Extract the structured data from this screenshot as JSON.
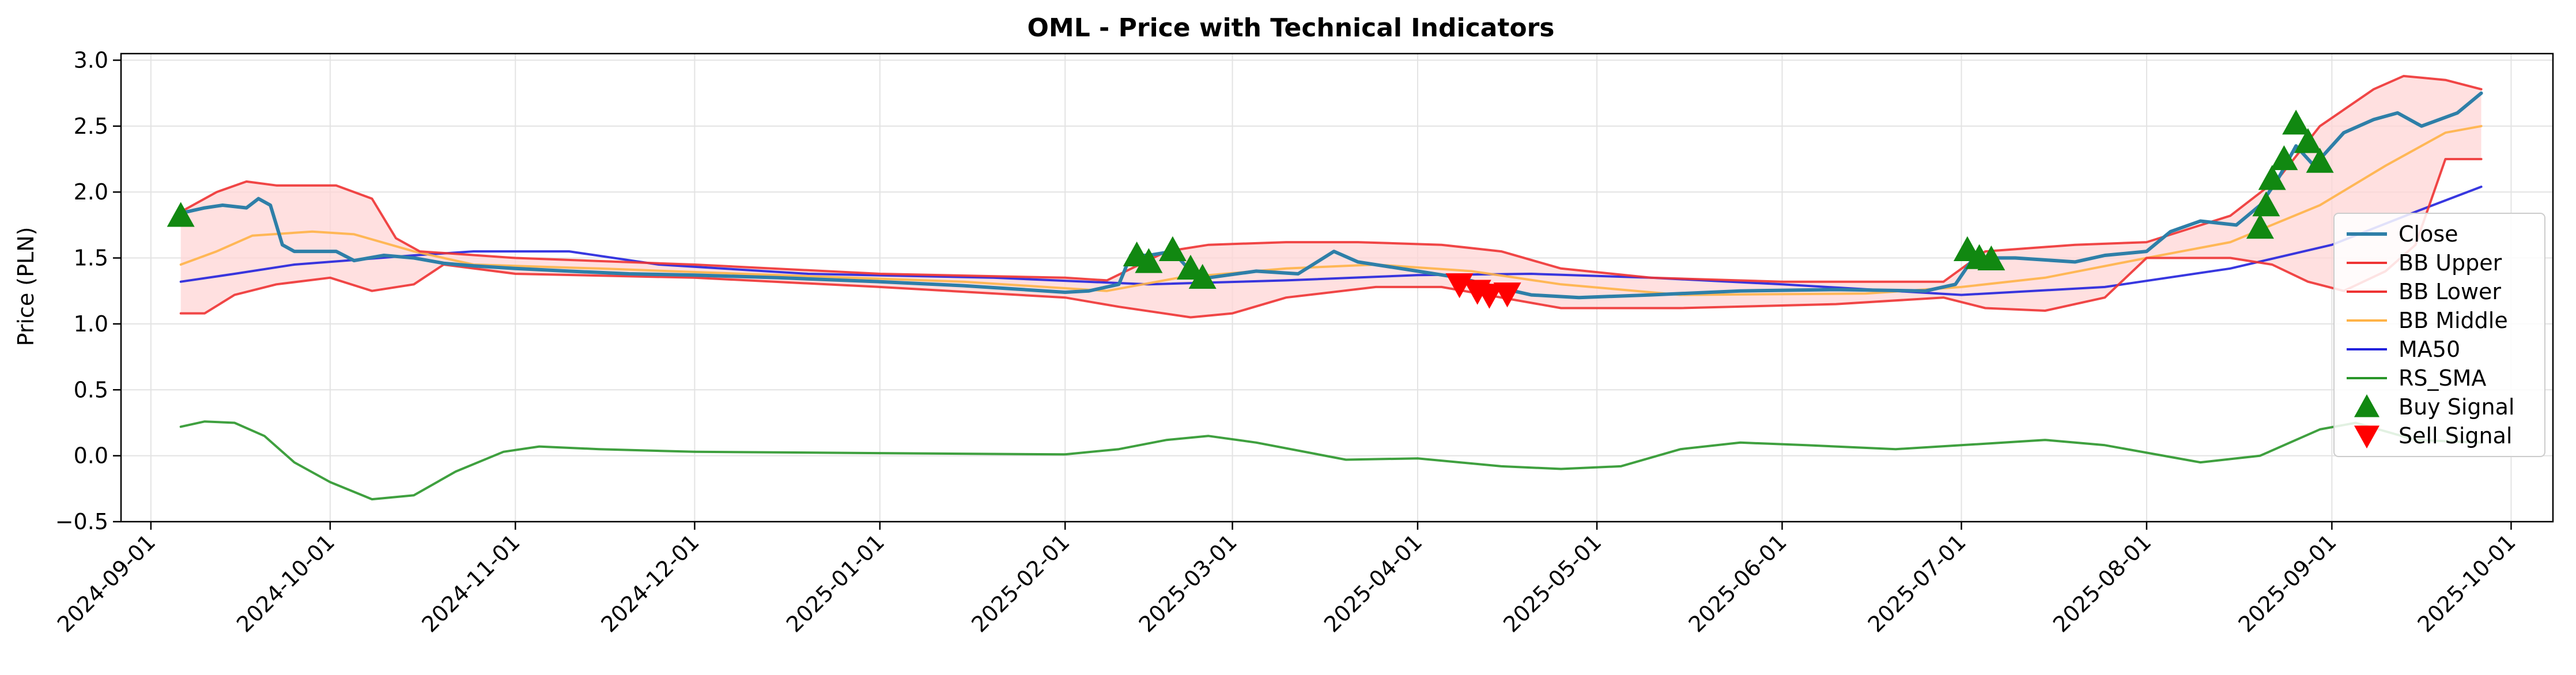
{
  "chart_data": {
    "type": "line",
    "title": "OML - Price with Technical Indicators",
    "xlabel": "",
    "ylabel": "Price (PLN)",
    "ylim": [
      -0.5,
      3.05
    ],
    "xlim": [
      "2024-08-27",
      "2025-10-08"
    ],
    "grid": true,
    "legend_position": "right",
    "y_ticks": [
      "−0.5",
      "0.0",
      "0.5",
      "1.0",
      "1.5",
      "2.0",
      "2.5",
      "3.0"
    ],
    "x_ticks": [
      "2024-09-01",
      "2024-10-01",
      "2024-11-01",
      "2024-12-01",
      "2025-01-01",
      "2025-02-01",
      "2025-03-01",
      "2025-04-01",
      "2025-05-01",
      "2025-06-01",
      "2025-07-01",
      "2025-08-01",
      "2025-09-01",
      "2025-10-01"
    ],
    "colors": {
      "close": "#2e7fa8",
      "bb_upper": "#ee3333",
      "bb_lower": "#ee3333",
      "bb_middle": "#ffb347",
      "ma50": "#2222dd",
      "rs_sma": "#2a962a",
      "band_fill": "#ffd6d6",
      "buy": "#118811",
      "sell": "#ff0000"
    },
    "series": [
      {
        "name": "Close",
        "points": [
          [
            "2024-09-06",
            1.84
          ],
          [
            "2024-09-10",
            1.88
          ],
          [
            "2024-09-13",
            1.9
          ],
          [
            "2024-09-17",
            1.88
          ],
          [
            "2024-09-19",
            1.95
          ],
          [
            "2024-09-21",
            1.9
          ],
          [
            "2024-09-23",
            1.6
          ],
          [
            "2024-09-25",
            1.55
          ],
          [
            "2024-09-28",
            1.55
          ],
          [
            "2024-10-02",
            1.55
          ],
          [
            "2024-10-05",
            1.48
          ],
          [
            "2024-10-10",
            1.52
          ],
          [
            "2024-10-15",
            1.5
          ],
          [
            "2024-10-20",
            1.46
          ],
          [
            "2024-10-25",
            1.44
          ],
          [
            "2024-11-01",
            1.42
          ],
          [
            "2024-11-10",
            1.4
          ],
          [
            "2024-11-20",
            1.38
          ],
          [
            "2024-12-01",
            1.37
          ],
          [
            "2024-12-15",
            1.35
          ],
          [
            "2025-01-01",
            1.32
          ],
          [
            "2025-01-15",
            1.29
          ],
          [
            "2025-02-01",
            1.24
          ],
          [
            "2025-02-05",
            1.25
          ],
          [
            "2025-02-10",
            1.3
          ],
          [
            "2025-02-12",
            1.52
          ],
          [
            "2025-02-15",
            1.52
          ],
          [
            "2025-02-19",
            1.55
          ],
          [
            "2025-02-22",
            1.4
          ],
          [
            "2025-02-25",
            1.35
          ],
          [
            "2025-03-05",
            1.4
          ],
          [
            "2025-03-12",
            1.38
          ],
          [
            "2025-03-18",
            1.55
          ],
          [
            "2025-03-22",
            1.47
          ],
          [
            "2025-04-01",
            1.4
          ],
          [
            "2025-04-08",
            1.35
          ],
          [
            "2025-04-15",
            1.27
          ],
          [
            "2025-04-20",
            1.22
          ],
          [
            "2025-04-28",
            1.2
          ],
          [
            "2025-05-10",
            1.22
          ],
          [
            "2025-05-25",
            1.25
          ],
          [
            "2025-06-10",
            1.26
          ],
          [
            "2025-06-25",
            1.25
          ],
          [
            "2025-06-30",
            1.3
          ],
          [
            "2025-07-03",
            1.5
          ],
          [
            "2025-07-10",
            1.5
          ],
          [
            "2025-07-20",
            1.47
          ],
          [
            "2025-07-25",
            1.52
          ],
          [
            "2025-08-01",
            1.55
          ],
          [
            "2025-08-05",
            1.7
          ],
          [
            "2025-08-10",
            1.78
          ],
          [
            "2025-08-16",
            1.75
          ],
          [
            "2025-08-20",
            1.9
          ],
          [
            "2025-08-23",
            2.1
          ],
          [
            "2025-08-26",
            2.35
          ],
          [
            "2025-08-29",
            2.2
          ],
          [
            "2025-09-03",
            2.45
          ],
          [
            "2025-09-08",
            2.55
          ],
          [
            "2025-09-12",
            2.6
          ],
          [
            "2025-09-16",
            2.5
          ],
          [
            "2025-09-22",
            2.6
          ],
          [
            "2025-09-26",
            2.75
          ]
        ]
      },
      {
        "name": "BB Upper",
        "points": [
          [
            "2024-09-06",
            1.85
          ],
          [
            "2024-09-12",
            2.0
          ],
          [
            "2024-09-17",
            2.08
          ],
          [
            "2024-09-22",
            2.05
          ],
          [
            "2024-10-02",
            2.05
          ],
          [
            "2024-10-08",
            1.95
          ],
          [
            "2024-10-12",
            1.65
          ],
          [
            "2024-10-16",
            1.55
          ],
          [
            "2024-11-01",
            1.5
          ],
          [
            "2024-12-01",
            1.45
          ],
          [
            "2025-01-01",
            1.38
          ],
          [
            "2025-02-01",
            1.35
          ],
          [
            "2025-02-08",
            1.33
          ],
          [
            "2025-02-18",
            1.55
          ],
          [
            "2025-02-25",
            1.6
          ],
          [
            "2025-03-10",
            1.62
          ],
          [
            "2025-03-22",
            1.62
          ],
          [
            "2025-04-05",
            1.6
          ],
          [
            "2025-04-15",
            1.55
          ],
          [
            "2025-04-25",
            1.42
          ],
          [
            "2025-05-10",
            1.35
          ],
          [
            "2025-06-01",
            1.32
          ],
          [
            "2025-06-28",
            1.32
          ],
          [
            "2025-07-05",
            1.55
          ],
          [
            "2025-07-20",
            1.6
          ],
          [
            "2025-08-01",
            1.62
          ],
          [
            "2025-08-15",
            1.82
          ],
          [
            "2025-08-23",
            2.1
          ],
          [
            "2025-08-30",
            2.5
          ],
          [
            "2025-09-08",
            2.78
          ],
          [
            "2025-09-13",
            2.88
          ],
          [
            "2025-09-20",
            2.85
          ],
          [
            "2025-09-26",
            2.78
          ]
        ]
      },
      {
        "name": "BB Lower",
        "points": [
          [
            "2024-09-06",
            1.08
          ],
          [
            "2024-09-10",
            1.08
          ],
          [
            "2024-09-15",
            1.22
          ],
          [
            "2024-09-22",
            1.3
          ],
          [
            "2024-10-01",
            1.35
          ],
          [
            "2024-10-08",
            1.25
          ],
          [
            "2024-10-15",
            1.3
          ],
          [
            "2024-10-20",
            1.45
          ],
          [
            "2024-11-01",
            1.38
          ],
          [
            "2024-12-01",
            1.35
          ],
          [
            "2025-01-01",
            1.28
          ],
          [
            "2025-02-01",
            1.2
          ],
          [
            "2025-02-10",
            1.13
          ],
          [
            "2025-02-22",
            1.05
          ],
          [
            "2025-03-01",
            1.08
          ],
          [
            "2025-03-10",
            1.2
          ],
          [
            "2025-03-25",
            1.28
          ],
          [
            "2025-04-05",
            1.28
          ],
          [
            "2025-04-15",
            1.2
          ],
          [
            "2025-04-25",
            1.12
          ],
          [
            "2025-05-15",
            1.12
          ],
          [
            "2025-06-10",
            1.15
          ],
          [
            "2025-06-28",
            1.2
          ],
          [
            "2025-07-05",
            1.12
          ],
          [
            "2025-07-15",
            1.1
          ],
          [
            "2025-07-25",
            1.2
          ],
          [
            "2025-08-01",
            1.5
          ],
          [
            "2025-08-15",
            1.5
          ],
          [
            "2025-08-22",
            1.45
          ],
          [
            "2025-08-28",
            1.32
          ],
          [
            "2025-09-03",
            1.25
          ],
          [
            "2025-09-10",
            1.4
          ],
          [
            "2025-09-15",
            1.6
          ],
          [
            "2025-09-20",
            2.25
          ],
          [
            "2025-09-26",
            2.25
          ]
        ]
      },
      {
        "name": "BB Middle",
        "points": [
          [
            "2024-09-06",
            1.45
          ],
          [
            "2024-09-12",
            1.55
          ],
          [
            "2024-09-18",
            1.67
          ],
          [
            "2024-09-28",
            1.7
          ],
          [
            "2024-10-05",
            1.68
          ],
          [
            "2024-10-15",
            1.55
          ],
          [
            "2024-10-25",
            1.45
          ],
          [
            "2024-11-15",
            1.42
          ],
          [
            "2024-12-15",
            1.37
          ],
          [
            "2025-01-15",
            1.32
          ],
          [
            "2025-02-08",
            1.25
          ],
          [
            "2025-02-20",
            1.35
          ],
          [
            "2025-03-10",
            1.42
          ],
          [
            "2025-03-25",
            1.45
          ],
          [
            "2025-04-10",
            1.4
          ],
          [
            "2025-04-25",
            1.3
          ],
          [
            "2025-05-15",
            1.22
          ],
          [
            "2025-06-15",
            1.23
          ],
          [
            "2025-07-01",
            1.28
          ],
          [
            "2025-07-15",
            1.35
          ],
          [
            "2025-08-01",
            1.5
          ],
          [
            "2025-08-15",
            1.62
          ],
          [
            "2025-08-30",
            1.9
          ],
          [
            "2025-09-10",
            2.2
          ],
          [
            "2025-09-20",
            2.45
          ],
          [
            "2025-09-26",
            2.5
          ]
        ]
      },
      {
        "name": "MA50",
        "points": [
          [
            "2024-09-06",
            1.32
          ],
          [
            "2024-09-15",
            1.38
          ],
          [
            "2024-09-25",
            1.45
          ],
          [
            "2024-10-15",
            1.52
          ],
          [
            "2024-10-25",
            1.55
          ],
          [
            "2024-11-10",
            1.55
          ],
          [
            "2024-11-25",
            1.45
          ],
          [
            "2024-12-20",
            1.38
          ],
          [
            "2025-01-20",
            1.35
          ],
          [
            "2025-02-15",
            1.3
          ],
          [
            "2025-03-10",
            1.33
          ],
          [
            "2025-04-01",
            1.37
          ],
          [
            "2025-04-20",
            1.38
          ],
          [
            "2025-05-10",
            1.35
          ],
          [
            "2025-06-01",
            1.3
          ],
          [
            "2025-07-01",
            1.22
          ],
          [
            "2025-07-25",
            1.28
          ],
          [
            "2025-08-15",
            1.42
          ],
          [
            "2025-09-01",
            1.6
          ],
          [
            "2025-09-15",
            1.85
          ],
          [
            "2025-09-26",
            2.04
          ]
        ]
      },
      {
        "name": "RS_SMA",
        "points": [
          [
            "2024-09-06",
            0.22
          ],
          [
            "2024-09-10",
            0.26
          ],
          [
            "2024-09-15",
            0.25
          ],
          [
            "2024-09-20",
            0.15
          ],
          [
            "2024-09-25",
            -0.05
          ],
          [
            "2024-10-01",
            -0.2
          ],
          [
            "2024-10-08",
            -0.33
          ],
          [
            "2024-10-15",
            -0.3
          ],
          [
            "2024-10-22",
            -0.12
          ],
          [
            "2024-10-30",
            0.03
          ],
          [
            "2024-11-05",
            0.07
          ],
          [
            "2024-11-15",
            0.05
          ],
          [
            "2024-12-01",
            0.03
          ],
          [
            "2025-01-01",
            0.02
          ],
          [
            "2025-02-01",
            0.01
          ],
          [
            "2025-02-10",
            0.05
          ],
          [
            "2025-02-18",
            0.12
          ],
          [
            "2025-02-25",
            0.15
          ],
          [
            "2025-03-05",
            0.1
          ],
          [
            "2025-03-20",
            -0.03
          ],
          [
            "2025-04-01",
            -0.02
          ],
          [
            "2025-04-15",
            -0.08
          ],
          [
            "2025-04-25",
            -0.1
          ],
          [
            "2025-05-05",
            -0.08
          ],
          [
            "2025-05-15",
            0.05
          ],
          [
            "2025-05-25",
            0.1
          ],
          [
            "2025-06-05",
            0.08
          ],
          [
            "2025-06-20",
            0.05
          ],
          [
            "2025-07-01",
            0.08
          ],
          [
            "2025-07-15",
            0.12
          ],
          [
            "2025-07-25",
            0.08
          ],
          [
            "2025-08-10",
            -0.05
          ],
          [
            "2025-08-20",
            0.0
          ],
          [
            "2025-08-30",
            0.2
          ],
          [
            "2025-09-05",
            0.25
          ],
          [
            "2025-09-15",
            0.12
          ],
          [
            "2025-09-26",
            0.1
          ]
        ]
      }
    ],
    "markers": [
      {
        "name": "Buy Signal",
        "points": [
          [
            "2024-09-06",
            1.82
          ],
          [
            "2025-02-13",
            1.52
          ],
          [
            "2025-02-15",
            1.47
          ],
          [
            "2025-02-19",
            1.56
          ],
          [
            "2025-02-22",
            1.42
          ],
          [
            "2025-02-24",
            1.35
          ],
          [
            "2025-07-02",
            1.56
          ],
          [
            "2025-07-04",
            1.5
          ],
          [
            "2025-07-06",
            1.49
          ],
          [
            "2025-08-20",
            1.73
          ],
          [
            "2025-08-21",
            1.9
          ],
          [
            "2025-08-22",
            2.1
          ],
          [
            "2025-08-24",
            2.25
          ],
          [
            "2025-08-26",
            2.52
          ],
          [
            "2025-08-28",
            2.38
          ],
          [
            "2025-08-30",
            2.23
          ]
        ]
      },
      {
        "name": "Sell Signal",
        "points": [
          [
            "2025-04-08",
            1.3
          ],
          [
            "2025-04-11",
            1.25
          ],
          [
            "2025-04-13",
            1.22
          ],
          [
            "2025-04-16",
            1.23
          ]
        ]
      }
    ]
  }
}
